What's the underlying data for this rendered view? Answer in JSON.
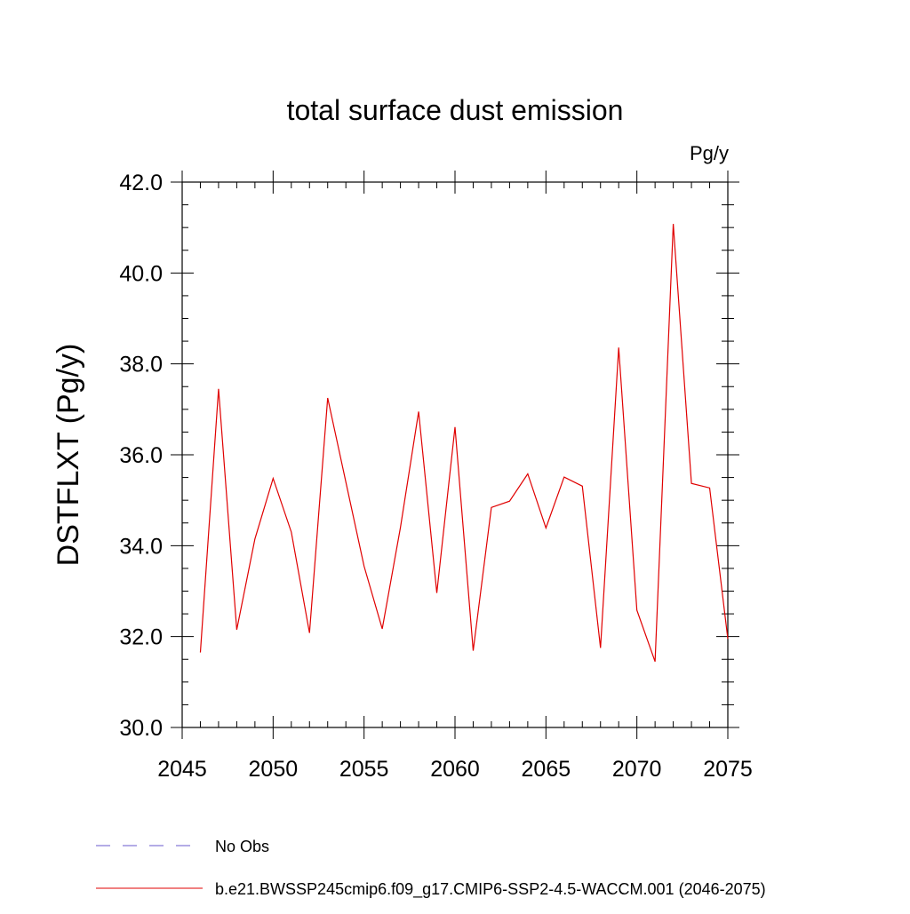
{
  "colors": {
    "series": "#e00000",
    "obs": "#6a5acd",
    "axis": "#000000"
  },
  "chart_data": {
    "type": "line",
    "title": "total surface dust emission",
    "units": "Pg/y",
    "xlabel": "",
    "ylabel": "DSTFLXT  (Pg/y)",
    "xlim": [
      2045,
      2075
    ],
    "ylim": [
      30.0,
      42.0
    ],
    "xticks": [
      2045,
      2050,
      2055,
      2060,
      2065,
      2070,
      2075
    ],
    "xtick_labels": [
      "2045",
      "2050",
      "2055",
      "2060",
      "2065",
      "2070",
      "2075"
    ],
    "yticks": [
      30.0,
      32.0,
      34.0,
      36.0,
      38.0,
      40.0,
      42.0
    ],
    "ytick_labels": [
      "30.0",
      "32.0",
      "34.0",
      "36.0",
      "38.0",
      "40.0",
      "42.0"
    ],
    "x_minor_step": 1,
    "y_minor_step": 0.5,
    "series": [
      {
        "name": "b.e21.BWSSP245cmip6.f09_g17.CMIP6-SSP2-4.5-WACCM.001 (2046-2075)",
        "style": "solid",
        "x": [
          2046,
          2047,
          2048,
          2049,
          2050,
          2051,
          2052,
          2053,
          2054,
          2055,
          2056,
          2057,
          2058,
          2059,
          2060,
          2061,
          2062,
          2063,
          2064,
          2065,
          2066,
          2067,
          2068,
          2069,
          2070,
          2071,
          2072,
          2073,
          2074,
          2075
        ],
        "values": [
          31.65,
          37.45,
          32.15,
          34.15,
          35.48,
          34.3,
          32.08,
          37.25,
          35.4,
          33.55,
          32.17,
          34.4,
          36.95,
          32.96,
          36.61,
          31.69,
          34.84,
          34.98,
          35.58,
          34.39,
          35.51,
          35.31,
          31.75,
          38.36,
          32.58,
          31.45,
          41.08,
          35.37,
          35.27,
          31.95
        ]
      }
    ],
    "legend": [
      {
        "label": "No Obs",
        "style": "dashed"
      },
      {
        "label": "b.e21.BWSSP245cmip6.f09_g17.CMIP6-SSP2-4.5-WACCM.001 (2046-2075)",
        "style": "solid"
      }
    ],
    "legend_position": "bottom-left"
  }
}
